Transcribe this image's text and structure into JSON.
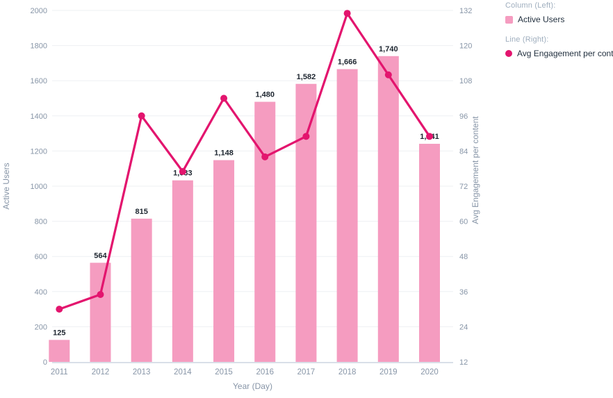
{
  "legend": {
    "column_title": "Column (Left):",
    "column_item": "Active Users",
    "line_title": "Line (Right):",
    "line_item": "Avg Engagement per content"
  },
  "chart_data": {
    "type": "combo",
    "categories": [
      "2011",
      "2012",
      "2013",
      "2014",
      "2015",
      "2016",
      "2017",
      "2018",
      "2019",
      "2020"
    ],
    "series": [
      {
        "name": "Active Users",
        "type": "bar",
        "axis": "left",
        "values": [
          125,
          564,
          815,
          1033,
          1148,
          1480,
          1582,
          1666,
          1740,
          1241
        ],
        "labels": [
          "125",
          "564",
          "815",
          "1,033",
          "1,148",
          "1,480",
          "1,582",
          "1,666",
          "1,740",
          "1,241"
        ]
      },
      {
        "name": "Avg Engagement per content",
        "type": "line",
        "axis": "right",
        "values": [
          30,
          35,
          96,
          77,
          102,
          82,
          89,
          131,
          110,
          89
        ]
      }
    ],
    "xlabel": "Year (Day)",
    "left_axis": {
      "label": "Active Users",
      "min": 0,
      "max": 2000,
      "step": 200,
      "ticks": [
        "0",
        "200",
        "400",
        "600",
        "800",
        "1000",
        "1200",
        "1400",
        "1600",
        "1800",
        "2000"
      ]
    },
    "right_axis": {
      "label": "Avg Engagement per content",
      "min": 12,
      "max": 132,
      "step": 12,
      "ticks": [
        "12",
        "24",
        "36",
        "48",
        "60",
        "72",
        "84",
        "96",
        "108",
        "120",
        "132"
      ]
    },
    "grid": "horizontal",
    "legend_position": "top-right",
    "colors": {
      "bar": "#F59CC0",
      "line": "#E3156E",
      "grid": "#EEF0F3",
      "axis_line": "#D9DFE8",
      "tick_text": "#8795A7",
      "label_text": "#1E2630"
    }
  }
}
